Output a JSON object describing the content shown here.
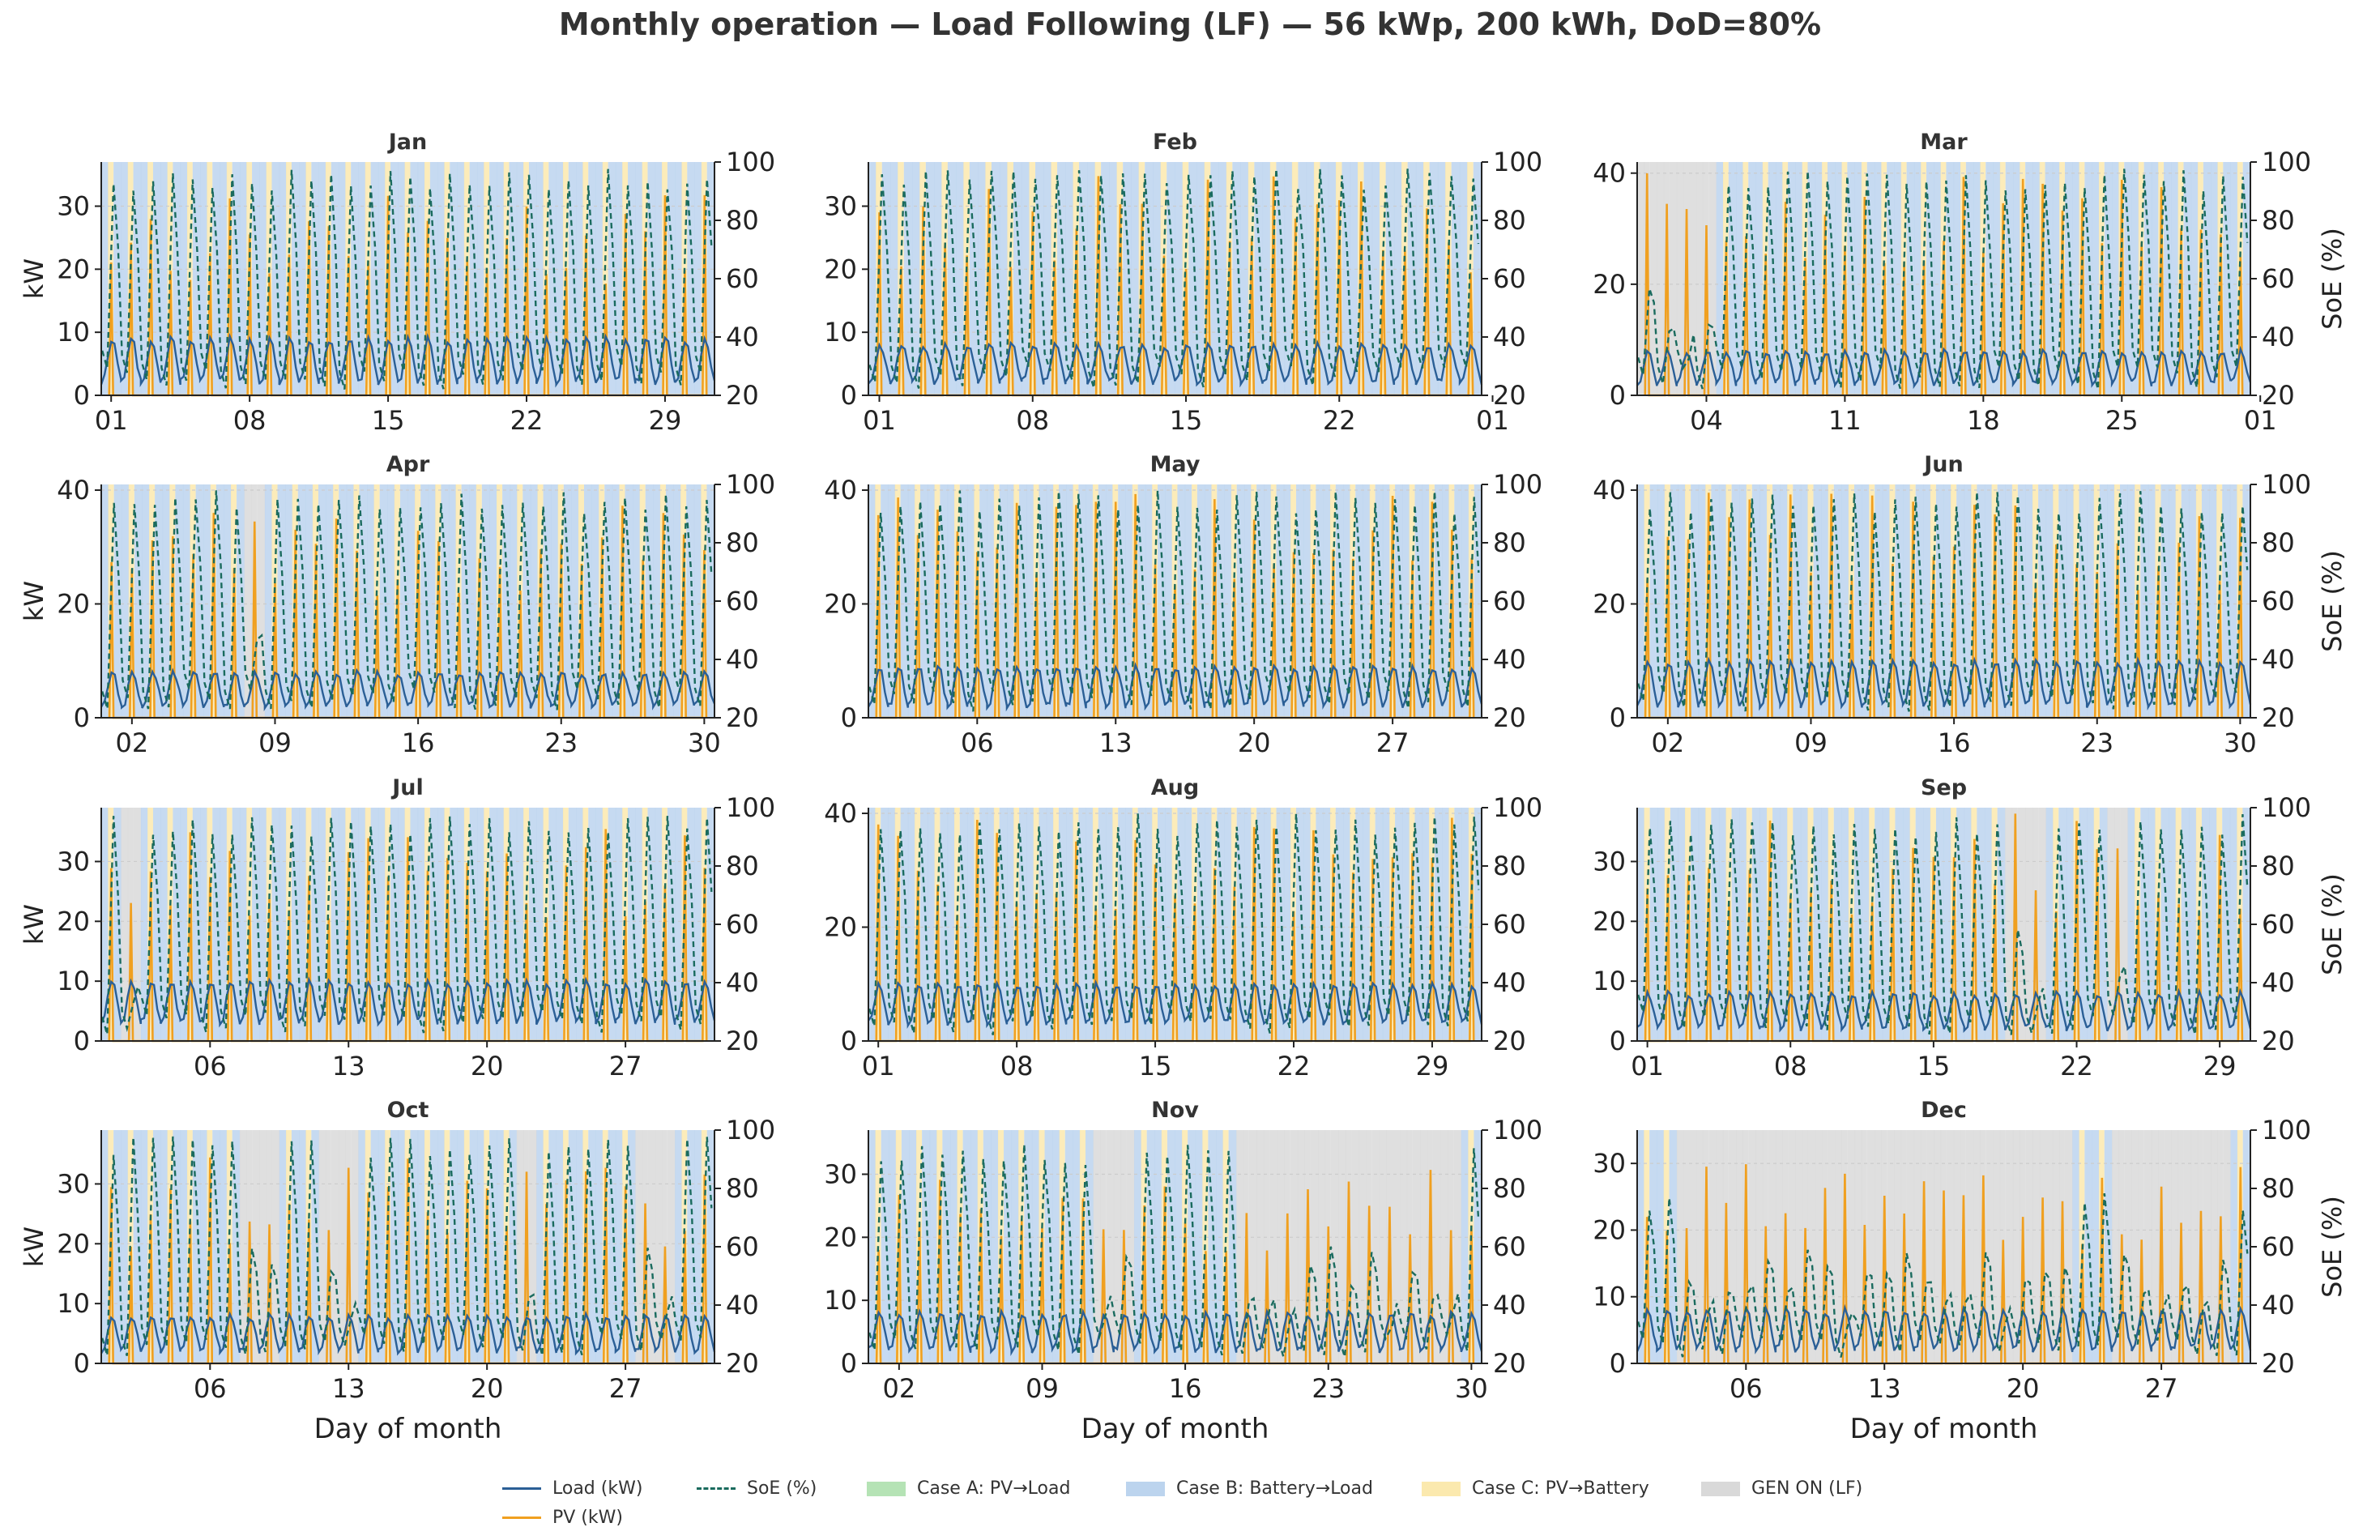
{
  "title": "Monthly operation — Load Following (LF) — 56 kWp, 200 kWh, DoD=80%",
  "colors": {
    "load": "#2b5f96",
    "pv": "#f0a020",
    "soe": "#1a6b5e",
    "case_a": "#b5e3b5",
    "case_b": "#bcd4ee",
    "case_c": "#fbe9ae",
    "gen_on": "#d9d9d9",
    "grid": "#cccccc"
  },
  "legend": {
    "load": "Load (kW)",
    "soe": "SoE (%)",
    "case_a": "Case A: PV→Load",
    "case_b": "Case B: Battery→Load",
    "case_c": "Case C: PV→Battery",
    "gen_on": "GEN ON (LF)",
    "pv": "PV (kW)"
  },
  "chart_data": [
    {
      "type": "line",
      "title": "Jan",
      "ylabel_left": "kW",
      "ylabel_right": "",
      "xlabel": "",
      "ylim_left": [
        0,
        37
      ],
      "ylim_right": [
        20,
        100
      ],
      "yticks_left": [
        "0",
        "10",
        "20",
        "30"
      ],
      "yticks_right": [
        "20",
        "40",
        "60",
        "80",
        "100"
      ],
      "xticks": [
        "01",
        "08",
        "15",
        "22",
        "29"
      ],
      "days": 31,
      "series": [
        {
          "name": "Load (kW)",
          "typical_range": [
            2,
            9
          ]
        },
        {
          "name": "PV (kW)",
          "typical_daily_peak": 32
        },
        {
          "name": "SoE (%)",
          "typical_range": [
            22,
            98
          ]
        }
      ],
      "gen_on_days": []
    },
    {
      "type": "line",
      "title": "Feb",
      "ylabel_left": "",
      "ylabel_right": "",
      "xlabel": "",
      "ylim_left": [
        0,
        37
      ],
      "ylim_right": [
        20,
        100
      ],
      "yticks_left": [
        "0",
        "10",
        "20",
        "30"
      ],
      "yticks_right": [
        "20",
        "40",
        "60",
        "80",
        "100"
      ],
      "xticks": [
        "01",
        "08",
        "15",
        "22",
        "01"
      ],
      "days": 28,
      "series": [
        {
          "name": "Load (kW)",
          "typical_range": [
            2,
            8
          ]
        },
        {
          "name": "PV (kW)",
          "typical_daily_peak": 35
        },
        {
          "name": "SoE (%)",
          "typical_range": [
            22,
            98
          ]
        }
      ],
      "gen_on_days": []
    },
    {
      "type": "line",
      "title": "Mar",
      "ylabel_left": "",
      "ylabel_right": "SoE (%)",
      "xlabel": "",
      "ylim_left": [
        0,
        42
      ],
      "ylim_right": [
        20,
        100
      ],
      "yticks_left": [
        "0",
        "20",
        "40"
      ],
      "yticks_right": [
        "20",
        "40",
        "60",
        "80",
        "100"
      ],
      "xticks": [
        "04",
        "11",
        "18",
        "25",
        "01"
      ],
      "days": 31,
      "series": [
        {
          "name": "Load (kW)",
          "typical_range": [
            2,
            8
          ]
        },
        {
          "name": "PV (kW)",
          "typical_daily_peak": 40
        },
        {
          "name": "SoE (%)",
          "typical_range": [
            22,
            98
          ]
        }
      ],
      "gen_on_days": [
        1,
        2,
        3,
        4
      ]
    },
    {
      "type": "line",
      "title": "Apr",
      "ylabel_left": "kW",
      "ylabel_right": "",
      "xlabel": "",
      "ylim_left": [
        0,
        41
      ],
      "ylim_right": [
        20,
        100
      ],
      "yticks_left": [
        "0",
        "20",
        "40"
      ],
      "yticks_right": [
        "20",
        "40",
        "60",
        "80",
        "100"
      ],
      "xticks": [
        "02",
        "09",
        "16",
        "23",
        "30"
      ],
      "days": 30,
      "series": [
        {
          "name": "Load (kW)",
          "typical_range": [
            2,
            8
          ]
        },
        {
          "name": "PV (kW)",
          "typical_daily_peak": 38
        },
        {
          "name": "SoE (%)",
          "typical_range": [
            22,
            98
          ]
        }
      ],
      "gen_on_days": [
        8
      ]
    },
    {
      "type": "line",
      "title": "May",
      "ylabel_left": "",
      "ylabel_right": "",
      "xlabel": "",
      "ylim_left": [
        0,
        41
      ],
      "ylim_right": [
        20,
        100
      ],
      "yticks_left": [
        "0",
        "20",
        "40"
      ],
      "yticks_right": [
        "20",
        "40",
        "60",
        "80",
        "100"
      ],
      "xticks": [
        "06",
        "13",
        "20",
        "27"
      ],
      "days": 31,
      "series": [
        {
          "name": "Load (kW)",
          "typical_range": [
            2,
            9
          ]
        },
        {
          "name": "PV (kW)",
          "typical_daily_peak": 40
        },
        {
          "name": "SoE (%)",
          "typical_range": [
            22,
            98
          ]
        }
      ],
      "gen_on_days": []
    },
    {
      "type": "line",
      "title": "Jun",
      "ylabel_left": "",
      "ylabel_right": "SoE (%)",
      "xlabel": "",
      "ylim_left": [
        0,
        41
      ],
      "ylim_right": [
        20,
        100
      ],
      "yticks_left": [
        "0",
        "20",
        "40"
      ],
      "yticks_right": [
        "20",
        "40",
        "60",
        "80",
        "100"
      ],
      "xticks": [
        "02",
        "09",
        "16",
        "23",
        "30"
      ],
      "days": 30,
      "series": [
        {
          "name": "Load (kW)",
          "typical_range": [
            2,
            10
          ]
        },
        {
          "name": "PV (kW)",
          "typical_daily_peak": 40
        },
        {
          "name": "SoE (%)",
          "typical_range": [
            22,
            98
          ]
        }
      ],
      "gen_on_days": []
    },
    {
      "type": "line",
      "title": "Jul",
      "ylabel_left": "kW",
      "ylabel_right": "",
      "xlabel": "",
      "ylim_left": [
        0,
        39
      ],
      "ylim_right": [
        20,
        100
      ],
      "yticks_left": [
        "0",
        "10",
        "20",
        "30"
      ],
      "yticks_right": [
        "20",
        "40",
        "60",
        "80",
        "100"
      ],
      "xticks": [
        "06",
        "13",
        "20",
        "27"
      ],
      "days": 31,
      "series": [
        {
          "name": "Load (kW)",
          "typical_range": [
            3,
            10
          ]
        },
        {
          "name": "PV (kW)",
          "typical_daily_peak": 37
        },
        {
          "name": "SoE (%)",
          "typical_range": [
            22,
            98
          ]
        }
      ],
      "gen_on_days": [
        2
      ]
    },
    {
      "type": "line",
      "title": "Aug",
      "ylabel_left": "",
      "ylabel_right": "",
      "xlabel": "",
      "ylim_left": [
        0,
        41
      ],
      "ylim_right": [
        20,
        100
      ],
      "yticks_left": [
        "0",
        "20",
        "40"
      ],
      "yticks_right": [
        "20",
        "40",
        "60",
        "80",
        "100"
      ],
      "xticks": [
        "01",
        "08",
        "15",
        "22",
        "29"
      ],
      "days": 31,
      "series": [
        {
          "name": "Load (kW)",
          "typical_range": [
            3,
            10
          ]
        },
        {
          "name": "PV (kW)",
          "typical_daily_peak": 40
        },
        {
          "name": "SoE (%)",
          "typical_range": [
            22,
            98
          ]
        }
      ],
      "gen_on_days": []
    },
    {
      "type": "line",
      "title": "Sep",
      "ylabel_left": "",
      "ylabel_right": "SoE (%)",
      "xlabel": "",
      "ylim_left": [
        0,
        39
      ],
      "ylim_right": [
        20,
        100
      ],
      "yticks_left": [
        "0",
        "10",
        "20",
        "30"
      ],
      "yticks_right": [
        "20",
        "40",
        "60",
        "80",
        "100"
      ],
      "xticks": [
        "01",
        "08",
        "15",
        "22",
        "29"
      ],
      "days": 30,
      "series": [
        {
          "name": "Load (kW)",
          "typical_range": [
            2,
            8
          ]
        },
        {
          "name": "PV (kW)",
          "typical_daily_peak": 38
        },
        {
          "name": "SoE (%)",
          "typical_range": [
            22,
            98
          ]
        }
      ],
      "gen_on_days": [
        19,
        20,
        24
      ]
    },
    {
      "type": "line",
      "title": "Oct",
      "ylabel_left": "kW",
      "ylabel_right": "",
      "xlabel": "Day of month",
      "ylim_left": [
        0,
        39
      ],
      "ylim_right": [
        20,
        100
      ],
      "yticks_left": [
        "0",
        "10",
        "20",
        "30"
      ],
      "yticks_right": [
        "20",
        "40",
        "60",
        "80",
        "100"
      ],
      "xticks": [
        "06",
        "13",
        "20",
        "27"
      ],
      "days": 31,
      "series": [
        {
          "name": "Load (kW)",
          "typical_range": [
            2,
            8
          ]
        },
        {
          "name": "PV (kW)",
          "typical_daily_peak": 35
        },
        {
          "name": "SoE (%)",
          "typical_range": [
            22,
            98
          ]
        }
      ],
      "gen_on_days": [
        8,
        9,
        12,
        13,
        22,
        28,
        29
      ]
    },
    {
      "type": "line",
      "title": "Nov",
      "ylabel_left": "",
      "ylabel_right": "",
      "xlabel": "Day of month",
      "ylim_left": [
        0,
        37
      ],
      "ylim_right": [
        20,
        100
      ],
      "yticks_left": [
        "0",
        "10",
        "20",
        "30"
      ],
      "yticks_right": [
        "20",
        "40",
        "60",
        "80",
        "100"
      ],
      "xticks": [
        "02",
        "09",
        "16",
        "23",
        "30"
      ],
      "days": 30,
      "series": [
        {
          "name": "Load (kW)",
          "typical_range": [
            2,
            8
          ]
        },
        {
          "name": "PV (kW)",
          "typical_daily_peak": 32
        },
        {
          "name": "SoE (%)",
          "typical_range": [
            22,
            96
          ]
        }
      ],
      "gen_on_days": [
        12,
        13,
        19,
        20,
        21,
        22,
        23,
        24,
        25,
        26,
        27,
        28,
        29
      ]
    },
    {
      "type": "line",
      "title": "Dec",
      "ylabel_left": "",
      "ylabel_right": "SoE (%)",
      "xlabel": "Day of month",
      "ylim_left": [
        0,
        35
      ],
      "ylim_right": [
        20,
        100
      ],
      "yticks_left": [
        "0",
        "10",
        "20",
        "30"
      ],
      "yticks_right": [
        "20",
        "40",
        "60",
        "80",
        "100"
      ],
      "xticks": [
        "06",
        "13",
        "20",
        "27"
      ],
      "days": 31,
      "series": [
        {
          "name": "Load (kW)",
          "typical_range": [
            2,
            8
          ]
        },
        {
          "name": "PV (kW)",
          "typical_daily_peak": 30
        },
        {
          "name": "SoE (%)",
          "typical_range": [
            22,
            80
          ]
        }
      ],
      "gen_on_days": [
        3,
        4,
        5,
        6,
        7,
        8,
        9,
        10,
        11,
        12,
        13,
        14,
        15,
        16,
        17,
        18,
        19,
        20,
        21,
        22,
        25,
        26,
        27,
        28,
        29,
        30
      ]
    }
  ]
}
